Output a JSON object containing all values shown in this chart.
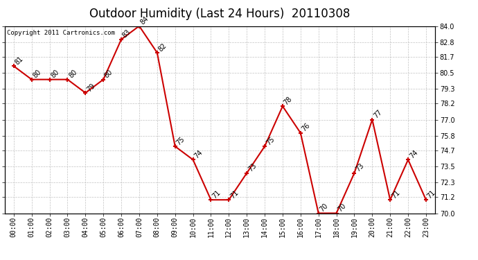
{
  "title": "Outdoor Humidity (Last 24 Hours)  20110308",
  "copyright": "Copyright 2011 Cartronics.com",
  "hours": [
    "00:00",
    "01:00",
    "02:00",
    "03:00",
    "04:00",
    "05:00",
    "06:00",
    "07:00",
    "08:00",
    "09:00",
    "10:00",
    "11:00",
    "12:00",
    "13:00",
    "14:00",
    "15:00",
    "16:00",
    "17:00",
    "18:00",
    "19:00",
    "20:00",
    "21:00",
    "22:00",
    "23:00"
  ],
  "values": [
    81,
    80,
    80,
    80,
    79,
    80,
    83,
    84,
    82,
    75,
    74,
    71,
    71,
    73,
    75,
    78,
    76,
    70,
    70,
    73,
    77,
    71,
    74,
    71
  ],
  "line_color": "#cc0000",
  "marker_color": "#cc0000",
  "bg_color": "#ffffff",
  "grid_color": "#bbbbbb",
  "ylim_min": 70.0,
  "ylim_max": 84.0,
  "yticks": [
    70.0,
    71.2,
    72.3,
    73.5,
    74.7,
    75.8,
    77.0,
    78.2,
    79.3,
    80.5,
    81.7,
    82.8,
    84.0
  ],
  "title_fontsize": 12,
  "label_fontsize": 7,
  "tick_fontsize": 7,
  "copyright_fontsize": 6.5
}
